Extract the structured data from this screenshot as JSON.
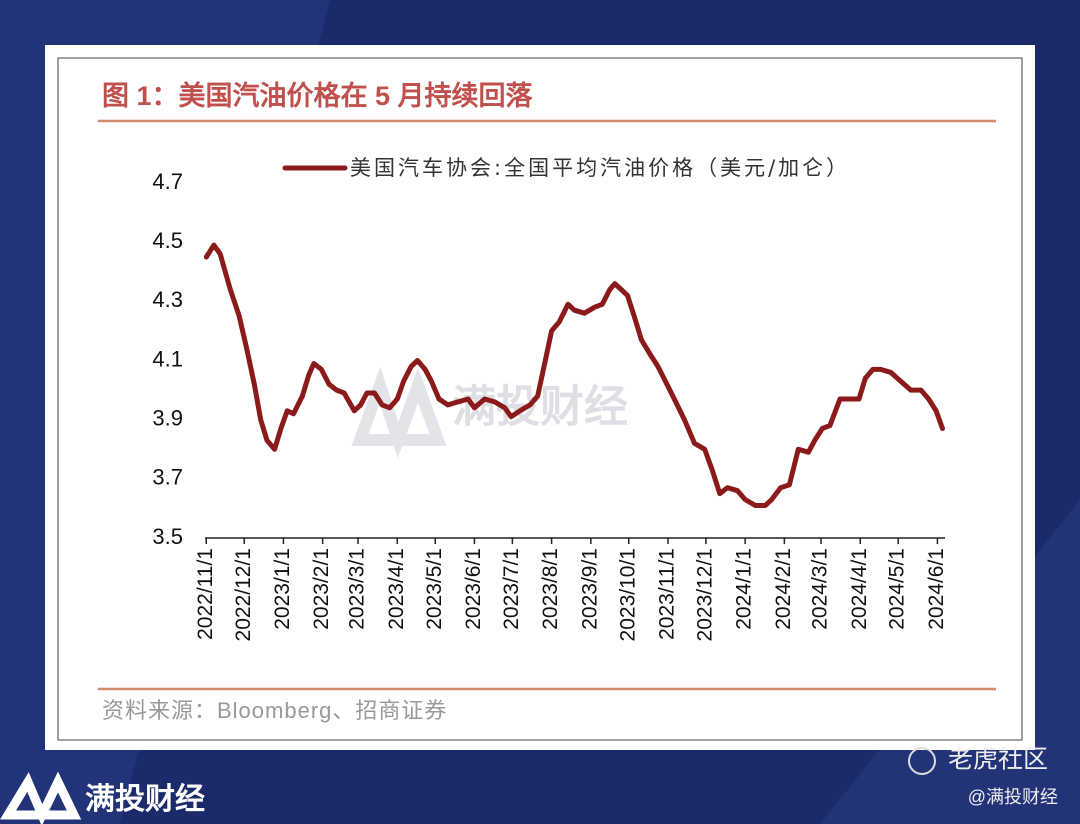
{
  "chart_data": {
    "type": "line",
    "title": "图 1：美国汽油价格在 5 月持续回落",
    "source": "资料来源：Bloomberg、招商证券",
    "x": [
      "2022/11/1",
      "2022/11/7",
      "2022/11/12",
      "2022/11/20",
      "2022/11/27",
      "2022/12/3",
      "2022/12/9",
      "2022/12/14",
      "2022/12/19",
      "2022/12/25",
      "2022/12/30",
      "2023/1/4",
      "2023/1/9",
      "2023/1/16",
      "2023/1/21",
      "2023/1/25",
      "2023/1/31",
      "2023/2/6",
      "2023/2/12",
      "2023/2/18",
      "2023/2/26",
      "2023/3/3",
      "2023/3/8",
      "2023/3/14",
      "2023/3/20",
      "2023/3/26",
      "2023/4/1",
      "2023/4/6",
      "2023/4/12",
      "2023/4/17",
      "2023/4/23",
      "2023/4/28",
      "2023/5/4",
      "2023/5/11",
      "2023/5/19",
      "2023/5/27",
      "2023/6/1",
      "2023/6/9",
      "2023/6/17",
      "2023/6/25",
      "2023/6/30",
      "2023/7/7",
      "2023/7/15",
      "2023/7/21",
      "2023/7/27",
      "2023/8/1",
      "2023/8/7",
      "2023/8/14",
      "2023/8/19",
      "2023/8/27",
      "2023/9/4",
      "2023/9/10",
      "2023/9/16",
      "2023/9/20",
      "2023/9/25",
      "2023/9/30",
      "2023/10/6",
      "2023/10/11",
      "2023/10/18",
      "2023/10/24",
      "2023/10/30",
      "2023/11/6",
      "2023/11/14",
      "2023/11/22",
      "2023/11/30",
      "2023/12/6",
      "2023/12/12",
      "2023/12/18",
      "2023/12/26",
      "2024/1/1",
      "2024/1/9",
      "2024/1/17",
      "2024/1/22",
      "2024/1/29",
      "2024/2/5",
      "2024/2/12",
      "2024/2/20",
      "2024/2/25",
      "2024/3/2",
      "2024/3/8",
      "2024/3/16",
      "2024/3/24",
      "2024/3/31",
      "2024/4/5",
      "2024/4/11",
      "2024/4/17",
      "2024/4/25",
      "2024/5/3",
      "2024/5/11",
      "2024/5/19",
      "2024/5/25",
      "2024/5/31",
      "2024/6/5"
    ],
    "series": [
      {
        "name": "美国汽车协会:全国平均汽油价格（美元/加仑）",
        "color": "#8b1a1a",
        "values": [
          4.45,
          4.49,
          4.46,
          4.34,
          4.25,
          4.14,
          4.02,
          3.9,
          3.83,
          3.8,
          3.87,
          3.93,
          3.92,
          3.98,
          4.05,
          4.09,
          4.07,
          4.02,
          4.0,
          3.99,
          3.93,
          3.95,
          3.99,
          3.99,
          3.95,
          3.94,
          3.97,
          4.03,
          4.08,
          4.1,
          4.07,
          4.03,
          3.97,
          3.95,
          3.96,
          3.97,
          3.94,
          3.97,
          3.96,
          3.94,
          3.91,
          3.93,
          3.95,
          3.98,
          4.1,
          4.2,
          4.23,
          4.29,
          4.27,
          4.26,
          4.28,
          4.29,
          4.34,
          4.36,
          4.34,
          4.32,
          4.24,
          4.17,
          4.12,
          4.08,
          4.03,
          3.97,
          3.9,
          3.82,
          3.8,
          3.73,
          3.65,
          3.67,
          3.66,
          3.63,
          3.61,
          3.61,
          3.63,
          3.67,
          3.68,
          3.8,
          3.79,
          3.83,
          3.87,
          3.88,
          3.97,
          3.97,
          3.97,
          4.04,
          4.07,
          4.07,
          4.06,
          4.03,
          4.0,
          4.0,
          3.97,
          3.93,
          3.87
        ]
      }
    ],
    "xlim": [
      "2022/10/31",
      "2024/6/7"
    ],
    "xticks": [
      "2022/11/1",
      "2022/12/1",
      "2023/1/1",
      "2023/2/1",
      "2023/3/1",
      "2023/4/1",
      "2023/5/1",
      "2023/6/1",
      "2023/7/1",
      "2023/8/1",
      "2023/9/1",
      "2023/10/1",
      "2023/11/1",
      "2023/12/1",
      "2024/1/1",
      "2024/2/1",
      "2024/3/1",
      "2024/4/1",
      "2024/5/1",
      "2024/6/1"
    ],
    "ylim": [
      3.5,
      4.7
    ],
    "yticks": [
      3.5,
      3.7,
      3.9,
      4.1,
      4.3,
      4.5,
      4.7
    ],
    "grid": false
  },
  "watermark": "满投财经",
  "footer": {
    "brand": "满投财经",
    "community": "老虎社区",
    "handle": "@满投财经"
  }
}
